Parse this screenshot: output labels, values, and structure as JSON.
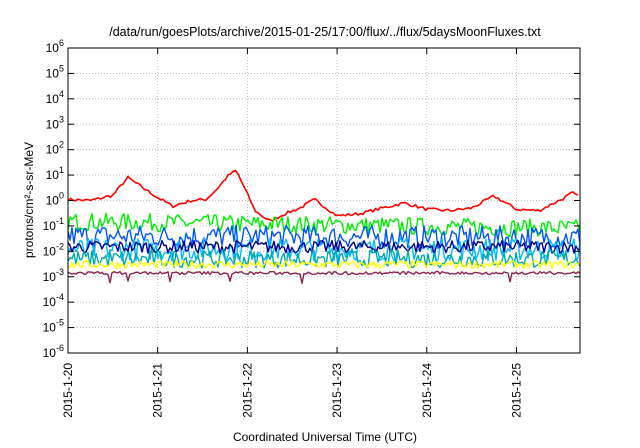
{
  "chart_data": {
    "type": "line",
    "title": "/data/run/goesPlots/archive/2015-01-25/17:00/flux/../flux/5daysMoonFluxes.txt",
    "xlabel": "Coordinated Universal Time (UTC)",
    "ylabel": "protons/cm²-s-sr-MeV",
    "y_scale": "log",
    "ylim": [
      1e-06,
      1000000.0
    ],
    "xlim": [
      "2015-01-20T00:00",
      "2015-01-25T17:00"
    ],
    "grid": true,
    "legend": "none",
    "y_ticks": [
      {
        "base": "10",
        "exp": "-6"
      },
      {
        "base": "10",
        "exp": "-5"
      },
      {
        "base": "10",
        "exp": "-4"
      },
      {
        "base": "10",
        "exp": "-3"
      },
      {
        "base": "10",
        "exp": "-2"
      },
      {
        "base": "10",
        "exp": "-1"
      },
      {
        "base": "10",
        "exp": "0"
      },
      {
        "base": "10",
        "exp": "1"
      },
      {
        "base": "10",
        "exp": "2"
      },
      {
        "base": "10",
        "exp": "3"
      },
      {
        "base": "10",
        "exp": "4"
      },
      {
        "base": "10",
        "exp": "5"
      },
      {
        "base": "10",
        "exp": "6"
      }
    ],
    "x_ticks": [
      "2015-1-20",
      "2015-1-21",
      "2015-1-22",
      "2015-1-23",
      "2015-1-24",
      "2015-1-25"
    ],
    "x_tick_times": [
      "2015-01-20T00:00",
      "2015-01-21T00:00",
      "2015-01-22T00:00",
      "2015-01-23T00:00",
      "2015-01-24T00:00",
      "2015-01-25T00:00"
    ],
    "series": [
      {
        "color": "#ff0000",
        "x": [
          "2015-01-20T00:00",
          "2015-01-20T06:00",
          "2015-01-20T12:00",
          "2015-01-20T16:00",
          "2015-01-20T19:00",
          "2015-01-21T00:00",
          "2015-01-21T04:00",
          "2015-01-21T09:00",
          "2015-01-21T13:00",
          "2015-01-21T16:00",
          "2015-01-21T19:00",
          "2015-01-21T21:00",
          "2015-01-22T00:00",
          "2015-01-22T02:00",
          "2015-01-22T06:00",
          "2015-01-22T10:00",
          "2015-01-22T14:00",
          "2015-01-22T18:00",
          "2015-01-23T00:00",
          "2015-01-23T06:00",
          "2015-01-23T12:00",
          "2015-01-23T18:00",
          "2015-01-24T00:00",
          "2015-01-24T06:00",
          "2015-01-24T12:00",
          "2015-01-24T18:00",
          "2015-01-25T00:00",
          "2015-01-25T06:00",
          "2015-01-25T12:00",
          "2015-01-25T15:00",
          "2015-01-25T17:00"
        ],
        "values": [
          1.1,
          1.0,
          1.6,
          8,
          4,
          1.3,
          0.6,
          1.0,
          1.1,
          3,
          10,
          15,
          1.8,
          0.4,
          0.15,
          0.3,
          0.5,
          1.1,
          0.25,
          0.3,
          0.5,
          0.8,
          0.45,
          0.4,
          0.5,
          1.5,
          0.45,
          0.4,
          1.1,
          2,
          1.3
        ]
      },
      {
        "color": "#00ee00",
        "x": [
          "2015-01-20T00:00",
          "2015-01-25T17:00"
        ],
        "values": [
          0.15,
          0.08
        ]
      },
      {
        "color": "#0055ff",
        "x": [
          "2015-01-20T00:00",
          "2015-01-25T17:00"
        ],
        "values": [
          0.04,
          0.035
        ]
      },
      {
        "color": "#00bbff",
        "x": [
          "2015-01-20T00:00",
          "2015-01-25T17:00"
        ],
        "values": [
          0.012,
          0.012
        ]
      },
      {
        "color": "#00008b",
        "x": [
          "2015-01-20T00:00",
          "2015-01-25T17:00"
        ],
        "values": [
          0.015,
          0.015
        ]
      },
      {
        "color": "#00aaaa",
        "x": [
          "2015-01-20T00:00",
          "2015-01-25T17:00"
        ],
        "values": [
          0.005,
          0.005
        ]
      },
      {
        "color": "#ffff00",
        "x": [
          "2015-01-20T00:00",
          "2015-01-25T17:00"
        ],
        "values": [
          0.003,
          0.003
        ]
      },
      {
        "color": "#8b2252",
        "x": [
          "2015-01-20T00:00",
          "2015-01-25T17:00"
        ],
        "values": [
          0.0014,
          0.0014
        ]
      }
    ]
  }
}
